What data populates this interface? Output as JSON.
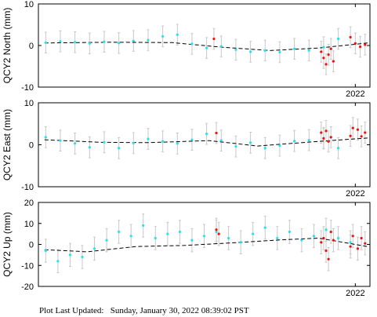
{
  "footer": {
    "label": "Plot Last Updated:",
    "timestamp": "Sunday, January 30, 2022 08:39:02 PST"
  },
  "colors": {
    "historic_points": "#22e4f0",
    "recent_points": "#ee1111",
    "error_bars": "#c8c8c8",
    "trend_line": "#000000",
    "frame": "#000000"
  },
  "chart_data": [
    {
      "type": "scatter",
      "ylabel": "QCY2 North  (mm)",
      "ylim": [
        -10,
        10
      ],
      "yticks": [
        -10,
        0,
        10
      ],
      "xticks": [
        {
          "x": 2022.0,
          "label": "2022"
        }
      ],
      "xlim": [
        2019.4,
        2022.12
      ],
      "error_bar_mm": 2.5,
      "grid": false,
      "trend": {
        "x": [
          2019.45,
          2020.0,
          2020.5,
          2020.9,
          2021.3,
          2021.7,
          2022.1
        ],
        "y": [
          0.6,
          0.8,
          0.7,
          -0.4,
          -1.2,
          -0.6,
          0.6
        ]
      },
      "series": [
        {
          "role": "historic",
          "x": [
            2019.46,
            2019.58,
            2019.7,
            2019.82,
            2019.94,
            2020.06,
            2020.18,
            2020.3,
            2020.42,
            2020.54,
            2020.66,
            2020.78,
            2020.9,
            2021.02,
            2021.14,
            2021.26,
            2021.38,
            2021.5,
            2021.62,
            2021.74,
            2021.86
          ],
          "y": [
            0.7,
            1.0,
            0.8,
            0.5,
            0.9,
            0.6,
            1.1,
            1.3,
            2.2,
            2.6,
            0.4,
            -0.6,
            -0.2,
            -1.0,
            -1.5,
            -1.2,
            -1.6,
            -0.8,
            -1.2,
            -0.4,
            1.6
          ]
        },
        {
          "role": "recent",
          "x": [
            2020.84,
            2021.72,
            2021.74,
            2021.76,
            2021.78,
            2021.8,
            2021.82,
            2021.96,
            2022.0,
            2022.04,
            2022.08
          ],
          "y": [
            1.6,
            -1.5,
            -3.0,
            -4.5,
            -2.2,
            -0.8,
            -3.8,
            2.0,
            0.5,
            -0.3,
            0.2
          ]
        }
      ]
    },
    {
      "type": "scatter",
      "ylabel": "QCY2 East  (mm)",
      "ylim": [
        -10,
        10
      ],
      "yticks": [
        -10,
        0,
        10
      ],
      "xticks": [
        {
          "x": 2022.0,
          "label": "2022"
        }
      ],
      "xlim": [
        2019.4,
        2022.12
      ],
      "error_bar_mm": 2.5,
      "grid": false,
      "trend": {
        "x": [
          2019.45,
          2019.9,
          2020.3,
          2020.8,
          2021.2,
          2021.6,
          2022.1
        ],
        "y": [
          1.2,
          0.6,
          0.5,
          1.0,
          -0.3,
          0.6,
          1.6
        ]
      },
      "series": [
        {
          "role": "historic",
          "x": [
            2019.46,
            2019.58,
            2019.7,
            2019.82,
            2019.94,
            2020.06,
            2020.18,
            2020.3,
            2020.42,
            2020.54,
            2020.66,
            2020.78,
            2020.9,
            2021.02,
            2021.14,
            2021.26,
            2021.38,
            2021.5,
            2021.62,
            2021.74,
            2021.86
          ],
          "y": [
            1.8,
            1.0,
            0.3,
            -0.6,
            0.6,
            -0.8,
            0.4,
            1.4,
            0.8,
            0.3,
            1.2,
            2.6,
            1.0,
            -0.4,
            0.5,
            -0.8,
            -0.2,
            0.9,
            1.1,
            1.6,
            -0.8
          ]
        },
        {
          "role": "recent",
          "x": [
            2020.86,
            2021.72,
            2021.74,
            2021.76,
            2021.78,
            2021.8,
            2021.96,
            2021.98,
            2022.02,
            2022.05,
            2022.08
          ],
          "y": [
            2.8,
            2.9,
            1.5,
            3.3,
            0.8,
            1.8,
            2.1,
            4.0,
            3.6,
            2.0,
            2.9
          ]
        }
      ]
    },
    {
      "type": "scatter",
      "ylabel": "QCY2 Up  (mm)",
      "ylim": [
        -20,
        20
      ],
      "yticks": [
        -20,
        -10,
        0,
        10,
        20
      ],
      "xticks": [
        {
          "x": 2022.0,
          "label": "2022"
        }
      ],
      "xlim": [
        2019.4,
        2022.12
      ],
      "error_bar_mm": 5.5,
      "grid": false,
      "trend": {
        "x": [
          2019.45,
          2019.8,
          2020.2,
          2020.6,
          2021.0,
          2021.4,
          2021.7,
          2022.1
        ],
        "y": [
          -2.5,
          -3.5,
          -1.0,
          -0.5,
          0.8,
          2.2,
          3.0,
          -1.0
        ]
      },
      "series": [
        {
          "role": "historic",
          "x": [
            2019.46,
            2019.56,
            2019.66,
            2019.76,
            2019.86,
            2019.96,
            2020.06,
            2020.16,
            2020.26,
            2020.36,
            2020.46,
            2020.56,
            2020.66,
            2020.76,
            2020.86,
            2020.96,
            2021.06,
            2021.16,
            2021.26,
            2021.36,
            2021.46,
            2021.56,
            2021.66,
            2021.76,
            2021.86,
            2021.96
          ],
          "y": [
            -3.0,
            -8.0,
            -5.0,
            -6.0,
            -2.0,
            2.0,
            6.0,
            4.0,
            9.0,
            3.0,
            5.0,
            6.0,
            2.0,
            4.0,
            6.0,
            3.0,
            1.0,
            5.0,
            8.0,
            3.0,
            6.0,
            2.0,
            4.0,
            7.0,
            3.0,
            1.0
          ]
        },
        {
          "role": "recent",
          "x": [
            2020.86,
            2020.88,
            2021.72,
            2021.74,
            2021.76,
            2021.78,
            2021.8,
            2021.82,
            2021.96,
            2021.98,
            2022.02,
            2022.05,
            2022.08
          ],
          "y": [
            7.0,
            5.0,
            1.0,
            3.0,
            -3.0,
            -7.0,
            6.0,
            2.0,
            -1.0,
            4.0,
            -2.0,
            3.0,
            0.5
          ]
        }
      ]
    }
  ]
}
